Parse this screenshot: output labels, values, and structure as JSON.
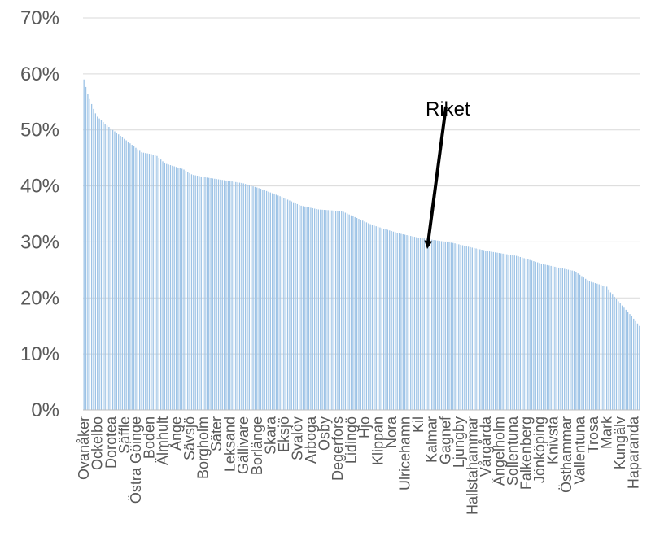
{
  "colors": {
    "bar": "#9dc3e6",
    "grid": "#d9d9d9",
    "axis": "#bfbfbf",
    "tick_text": "#595959",
    "annotation": "#000000"
  },
  "chart_data": {
    "type": "bar",
    "title": "",
    "xlabel": "",
    "ylabel": "",
    "ylim": [
      0,
      70
    ],
    "y_ticks": [
      0,
      10,
      20,
      30,
      40,
      50,
      60,
      70
    ],
    "y_tick_labels": [
      "0%",
      "10%",
      "20%",
      "30%",
      "40%",
      "50%",
      "60%",
      "70%"
    ],
    "grid": true,
    "legend": "none",
    "n_bars": 290,
    "value_profile": [
      [
        0,
        59
      ],
      [
        2,
        56.5
      ],
      [
        5,
        54
      ],
      [
        7,
        52.5
      ],
      [
        12,
        51
      ],
      [
        20,
        49
      ],
      [
        28,
        47
      ],
      [
        32,
        46
      ],
      [
        40,
        45.5
      ],
      [
        45,
        44
      ],
      [
        55,
        43
      ],
      [
        60,
        42
      ],
      [
        68,
        41.5
      ],
      [
        78,
        41
      ],
      [
        88,
        40.5
      ],
      [
        98,
        39.5
      ],
      [
        110,
        38
      ],
      [
        120,
        36.5
      ],
      [
        130,
        35.8
      ],
      [
        143,
        35.5
      ],
      [
        160,
        33
      ],
      [
        175,
        31.5
      ],
      [
        185,
        30.8
      ],
      [
        195,
        30.3
      ],
      [
        205,
        29.8
      ],
      [
        215,
        29
      ],
      [
        225,
        28.3
      ],
      [
        240,
        27.5
      ],
      [
        255,
        26
      ],
      [
        265,
        25.3
      ],
      [
        272,
        24.8
      ],
      [
        280,
        23
      ],
      [
        290,
        22
      ],
      [
        292,
        21
      ],
      [
        296,
        19.5
      ],
      [
        303,
        17
      ],
      [
        308,
        15
      ]
    ],
    "profile_span": 308,
    "labels": [
      {
        "i": 0,
        "text": "Ovanåker"
      },
      {
        "i": 7,
        "text": "Ockelbo"
      },
      {
        "i": 14,
        "text": "Dorotea"
      },
      {
        "i": 21,
        "text": "Säffle"
      },
      {
        "i": 27,
        "text": "Östra Göinge"
      },
      {
        "i": 34,
        "text": "Boden"
      },
      {
        "i": 41,
        "text": "Älmhult"
      },
      {
        "i": 48,
        "text": "Ånge"
      },
      {
        "i": 55,
        "text": "Sävsjö"
      },
      {
        "i": 62,
        "text": "Borgholm"
      },
      {
        "i": 69,
        "text": "Säter"
      },
      {
        "i": 76,
        "text": "Leksand"
      },
      {
        "i": 83,
        "text": "Gällivare"
      },
      {
        "i": 90,
        "text": "Borlänge"
      },
      {
        "i": 97,
        "text": "Skara"
      },
      {
        "i": 104,
        "text": "Eksjö"
      },
      {
        "i": 111,
        "text": "Svalöv"
      },
      {
        "i": 118,
        "text": "Arboga"
      },
      {
        "i": 125,
        "text": "Osby"
      },
      {
        "i": 132,
        "text": "Degerfors"
      },
      {
        "i": 139,
        "text": "Lidingö"
      },
      {
        "i": 146,
        "text": "Hjo"
      },
      {
        "i": 153,
        "text": "Klippan"
      },
      {
        "i": 160,
        "text": "Nora"
      },
      {
        "i": 167,
        "text": "Ulricehamn"
      },
      {
        "i": 174,
        "text": "Kil"
      },
      {
        "i": 181,
        "text": "Kalmar"
      },
      {
        "i": 188,
        "text": "Gagnef"
      },
      {
        "i": 195,
        "text": "Ljungby"
      },
      {
        "i": 202,
        "text": "Hallstahammar"
      },
      {
        "i": 209,
        "text": "Vårgårda"
      },
      {
        "i": 216,
        "text": "Ängelholm"
      },
      {
        "i": 223,
        "text": "Sollentuna"
      },
      {
        "i": 230,
        "text": "Falkenberg"
      },
      {
        "i": 237,
        "text": "Jönköping"
      },
      {
        "i": 244,
        "text": "Knivsta"
      },
      {
        "i": 251,
        "text": "Östhammar"
      },
      {
        "i": 258,
        "text": "Vallentuna"
      },
      {
        "i": 265,
        "text": "Trosa"
      },
      {
        "i": 272,
        "text": "Mark"
      },
      {
        "i": 279,
        "text": "Kungälv"
      },
      {
        "i": 286,
        "text": "Haparanda"
      }
    ],
    "annotation": {
      "text": "Riket",
      "points_to_bar": 175,
      "value": 30.5
    }
  }
}
